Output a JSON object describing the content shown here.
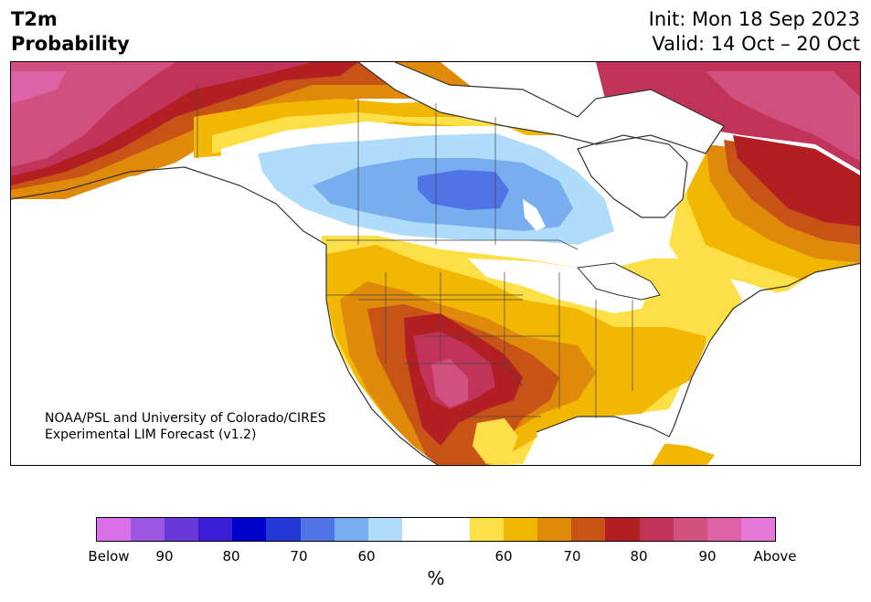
{
  "title": {
    "line1": "T2m",
    "line2": "Probability"
  },
  "init": {
    "line1": "Init: Mon 18 Sep 2023",
    "line2": "Valid: 14 Oct – 20 Oct"
  },
  "credit": {
    "line1": "NOAA/PSL and University of Colorado/CIRES",
    "line2": "Experimental LIM Forecast (v1.2)"
  },
  "colorbar": {
    "unit": "%",
    "colors": [
      "#d970e8",
      "#9b57e0",
      "#6a38d9",
      "#3a1fd6",
      "#0000cc",
      "#2438d8",
      "#5074e6",
      "#78aef0",
      "#aedcfa",
      "#ffffff",
      "#ffffff",
      "#fde047",
      "#f2b705",
      "#e08a0c",
      "#c85317",
      "#b21f22",
      "#c2335a",
      "#d0507f",
      "#dd62a8",
      "#e878d8"
    ],
    "ticks": [
      "Below",
      "90",
      "80",
      "70",
      "60",
      "60",
      "70",
      "80",
      "90",
      "Above"
    ]
  }
}
